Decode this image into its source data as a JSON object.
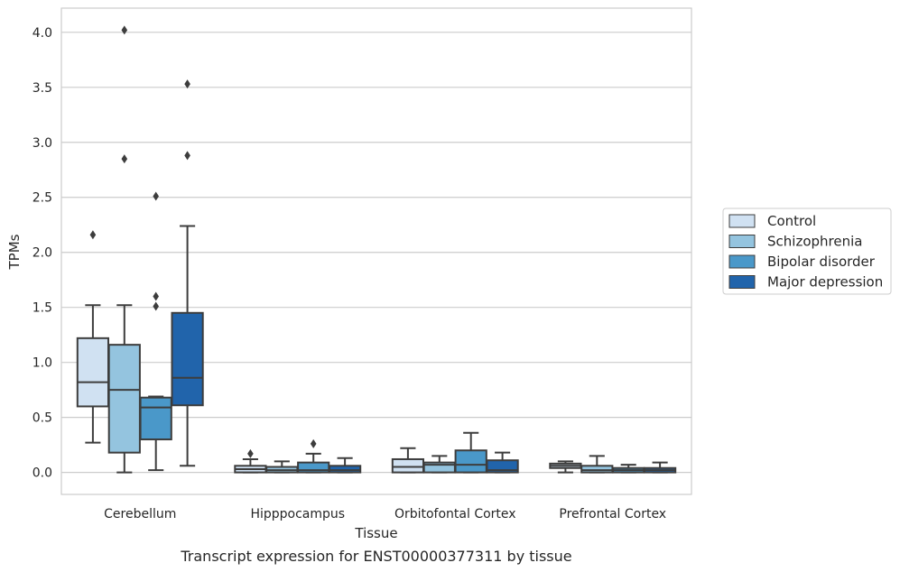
{
  "chart_data": {
    "type": "box",
    "title": "",
    "caption": "Transcript expression for ENST00000377311 by tissue",
    "xlabel": "Tissue",
    "ylabel": "TPMs",
    "ylim": [
      -0.2,
      4.22
    ],
    "yticks": [
      0.0,
      0.5,
      1.0,
      1.5,
      2.0,
      2.5,
      3.0,
      3.5,
      4.0
    ],
    "ytick_labels": [
      "0.0",
      "0.5",
      "1.0",
      "1.5",
      "2.0",
      "2.5",
      "3.0",
      "3.5",
      "4.0"
    ],
    "grid": "horizontal",
    "legend_position": "right",
    "categories": [
      "Cerebellum",
      "Hipppocampus",
      "Orbitofontal Cortex",
      "Prefrontal Cortex"
    ],
    "series": [
      {
        "name": "Control",
        "color": "#d0e1f2",
        "boxes": [
          {
            "whisker_low": 0.27,
            "q1": 0.6,
            "median": 0.82,
            "q3": 1.22,
            "whisker_high": 1.52,
            "outliers": [
              2.16
            ]
          },
          {
            "whisker_low": 0.0,
            "q1": 0.0,
            "median": 0.03,
            "q3": 0.06,
            "whisker_high": 0.12,
            "outliers": [
              0.17
            ]
          },
          {
            "whisker_low": 0.0,
            "q1": 0.0,
            "median": 0.05,
            "q3": 0.12,
            "whisker_high": 0.22,
            "outliers": []
          },
          {
            "whisker_low": 0.0,
            "q1": 0.04,
            "median": 0.06,
            "q3": 0.08,
            "whisker_high": 0.1,
            "outliers": []
          }
        ]
      },
      {
        "name": "Schizophrenia",
        "color": "#94c4df",
        "boxes": [
          {
            "whisker_low": 0.0,
            "q1": 0.18,
            "median": 0.75,
            "q3": 1.16,
            "whisker_high": 1.52,
            "outliers": [
              2.85,
              4.02
            ]
          },
          {
            "whisker_low": 0.0,
            "q1": 0.0,
            "median": 0.02,
            "q3": 0.05,
            "whisker_high": 0.1,
            "outliers": []
          },
          {
            "whisker_low": 0.0,
            "q1": 0.0,
            "median": 0.07,
            "q3": 0.09,
            "whisker_high": 0.15,
            "outliers": []
          },
          {
            "whisker_low": 0.0,
            "q1": 0.0,
            "median": 0.02,
            "q3": 0.06,
            "whisker_high": 0.15,
            "outliers": []
          }
        ]
      },
      {
        "name": "Bipolar disorder",
        "color": "#4a98c9",
        "boxes": [
          {
            "whisker_low": 0.02,
            "q1": 0.3,
            "median": 0.59,
            "q3": 0.68,
            "whisker_high": 0.69,
            "outliers": [
              1.51,
              1.6,
              2.51
            ]
          },
          {
            "whisker_low": 0.0,
            "q1": 0.0,
            "median": 0.02,
            "q3": 0.09,
            "whisker_high": 0.17,
            "outliers": [
              0.26
            ]
          },
          {
            "whisker_low": 0.0,
            "q1": 0.0,
            "median": 0.07,
            "q3": 0.2,
            "whisker_high": 0.36,
            "outliers": []
          },
          {
            "whisker_low": 0.0,
            "q1": 0.0,
            "median": 0.02,
            "q3": 0.04,
            "whisker_high": 0.07,
            "outliers": []
          }
        ]
      },
      {
        "name": "Major depression",
        "color": "#2164ab",
        "boxes": [
          {
            "whisker_low": 0.06,
            "q1": 0.61,
            "median": 0.86,
            "q3": 1.45,
            "whisker_high": 2.24,
            "outliers": [
              2.88,
              3.53
            ]
          },
          {
            "whisker_low": 0.0,
            "q1": 0.0,
            "median": 0.02,
            "q3": 0.06,
            "whisker_high": 0.13,
            "outliers": []
          },
          {
            "whisker_low": 0.0,
            "q1": 0.0,
            "median": 0.02,
            "q3": 0.11,
            "whisker_high": 0.18,
            "outliers": []
          },
          {
            "whisker_low": 0.0,
            "q1": 0.0,
            "median": 0.02,
            "q3": 0.04,
            "whisker_high": 0.09,
            "outliers": []
          }
        ]
      }
    ]
  }
}
